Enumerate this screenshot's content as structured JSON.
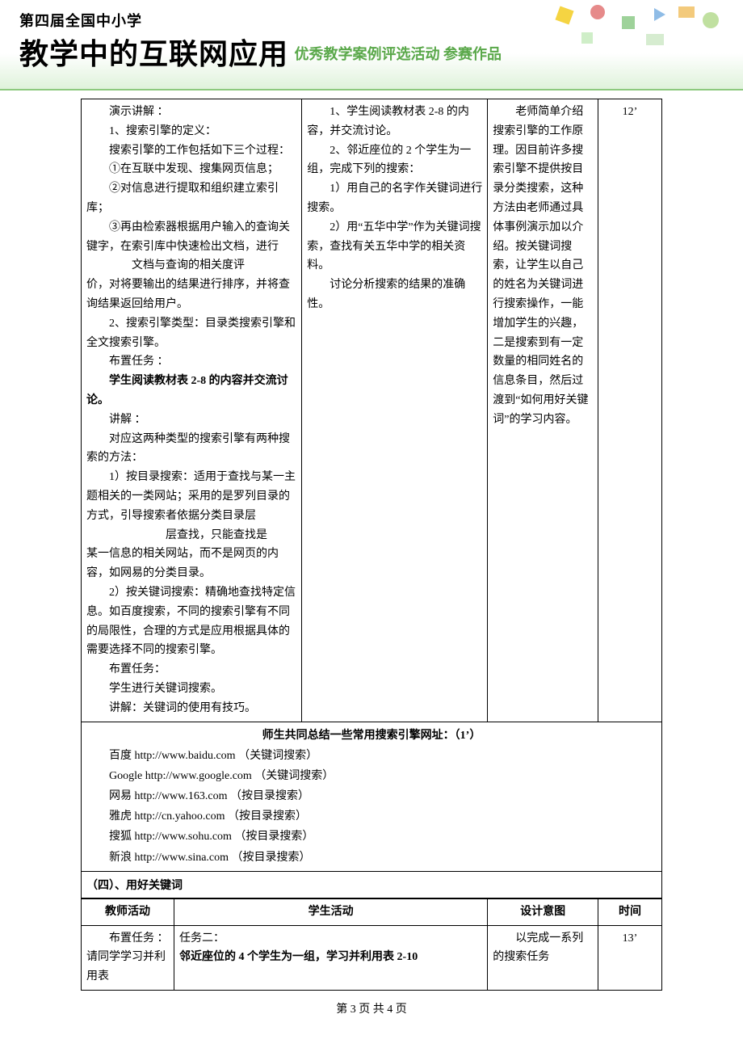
{
  "banner": {
    "overline": "第四届全国中小学",
    "title": "教学中的互联网应用",
    "subtitle": "优秀教学案例评选活动  参赛作品"
  },
  "table1": {
    "colwidths_pct": [
      38,
      32,
      19,
      11
    ],
    "row": {
      "teacher": "　　演示讲解 ：\n　　1、搜索引擎的定义：\n　　搜索引擎的工作包括如下三个过程：\n　　①在互联中发现、搜集网页信息；\n　　②对信息进行提取和组织建立索引库；\n　　③再由检索器根据用户输入的查询关键字，在索引库中快速检出文档，进行\n　　　　文档与查询的相关度评\n  价，对将要输出的结果进行排序，并将查询结果返回给用户。\n　　2、搜索引擎类型：目录类搜索引擎和全文搜索引擎。\n　　布置任务 ：\n[[B]]　　学生阅读教材表 2-8 的内容并交流讨论。[[/B]]\n　　讲解 ：\n　　对应这两种类型的搜索引擎有两种搜索的方法：\n　　1）按目录搜索：适用于查找与某一主题相关的一类网站；采用的是罗列目录的方式，引导搜索者依据分类目录层\n　　　　　　　层查找，只能查找是\n某一信息的相关网站，而不是网页的内容，如网易的分类目录。\n　　2）按关键词搜索：精确地查找特定信息。如百度搜索，不同的搜索引擎有不同的局限性，合理的方式是应用根据具体的需要选择不同的搜索引擎。\n　　布置任务：\n　　学生进行关键词搜索。\n　　讲解：关键词的使用有技巧。",
      "student": "　　1、学生阅读教材表 2-8 的内容，并交流讨论。\n　　2、邻近座位的 2 个学生为一组，完成下列的搜索：\n　　1）用自己的名字作关键词进行搜索。\n　　2）用“五华中学”作为关键词搜索，查找有关五华中学的相关资料。\n　　讨论分析搜索的结果的准确性。",
      "intent": "　　老师简单介绍搜索引擎的工作原理。因目前许多搜索引擎不提供按目录分类搜索，这种方法由老师通过具体事例演示加以介绍。按关键词搜索，让学生以自己的姓名为关键词进行搜索操作，一能增加学生的兴趣，二是搜索到有一定数量的相同姓名的信息条目，然后过渡到“如何用好关键词”的学习内容。",
      "time": "12’"
    }
  },
  "summary": {
    "title": "师生共同总结一些常用搜索引擎网址：（1’）",
    "items": [
      "百度 http://www.baidu.com   （关键词搜索）",
      "Google  http://www.google.com （关键词搜索）",
      "网易 http://www.163.com   （按目录搜索）",
      "雅虎 http://cn.yahoo.com   （按目录搜索）",
      "搜狐 http://www.sohu.com   （按目录搜索）",
      "新浪 http://www.sina.com   （按目录搜索）"
    ]
  },
  "section4": {
    "heading": "（四）、用好关键词",
    "colwidths_pct": [
      16,
      54,
      19,
      11
    ],
    "headers": {
      "teacher": "教师活动",
      "student": "学生活动",
      "intent": "设计意图",
      "time": "时间"
    },
    "row": {
      "teacher": "　　布置任务 ：\n请同学学习并利用表",
      "student": "任务二：\n[[B]]邻近座位的 4 个学生为一组，学习并利用表 2-10[[/B]]",
      "intent": "　　以完成一系列的搜索任务",
      "time": "13’"
    }
  },
  "footer": "第 3 页 共 4 页"
}
